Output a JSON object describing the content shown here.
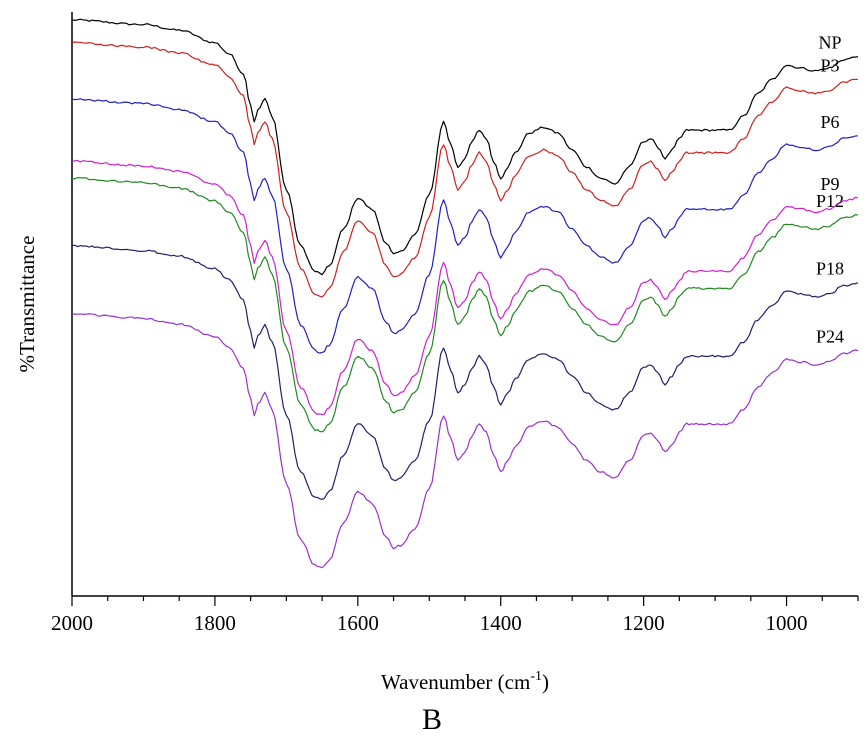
{
  "chart_data": {
    "type": "line",
    "xlabel_main": "Wavenumber (cm",
    "xlabel_sup": "-1",
    "xlabel_end": ")",
    "ylabel": "%Transmittance",
    "panel_label": "B",
    "xlim": [
      2000,
      900
    ],
    "x_reversed": true,
    "x_ticks": [
      2000,
      1800,
      1600,
      1400,
      1200,
      1000
    ],
    "y_ticks": [],
    "grid": false,
    "legend": "inline labels at right end of each curve",
    "series": [
      {
        "name": "NP",
        "color": "#000000",
        "x": [
          2000,
          1900,
          1850,
          1800,
          1780,
          1760,
          1750,
          1745,
          1740,
          1730,
          1720,
          1700,
          1680,
          1660,
          1650,
          1640,
          1620,
          1600,
          1580,
          1560,
          1550,
          1540,
          1520,
          1500,
          1480,
          1470,
          1460,
          1450,
          1440,
          1430,
          1420,
          1410,
          1400,
          1390,
          1380,
          1360,
          1340,
          1320,
          1300,
          1280,
          1260,
          1240,
          1220,
          1200,
          1190,
          1180,
          1170,
          1160,
          1150,
          1140,
          1130,
          1100,
          1080,
          1060,
          1040,
          1020,
          1000,
          980,
          960,
          940,
          920,
          900
        ],
        "y": [
          100,
          99.2,
          98.2,
          96.0,
          94.0,
          90.5,
          85.0,
          82.0,
          84.0,
          86.0,
          83.0,
          70.0,
          60.0,
          55.5,
          55.0,
          56.5,
          63.0,
          68.5,
          66.5,
          60.5,
          58.5,
          59.0,
          62.0,
          69.0,
          82.0,
          78.0,
          74.0,
          75.5,
          78.5,
          80.5,
          79.0,
          75.0,
          72.0,
          74.0,
          76.5,
          80.0,
          81.0,
          80.0,
          77.0,
          74.0,
          72.0,
          71.0,
          74.0,
          78.5,
          79.0,
          77.5,
          75.5,
          77.0,
          79.0,
          80.5,
          80.5,
          80.5,
          80.5,
          83.0,
          87.0,
          89.5,
          92.0,
          91.5,
          91.0,
          91.5,
          93.0,
          93.5
        ]
      },
      {
        "name": "P3",
        "color": "#d02020",
        "x": [
          2000,
          1900,
          1850,
          1800,
          1780,
          1760,
          1750,
          1745,
          1740,
          1730,
          1720,
          1700,
          1680,
          1660,
          1650,
          1640,
          1620,
          1600,
          1580,
          1560,
          1550,
          1540,
          1520,
          1500,
          1480,
          1470,
          1460,
          1450,
          1440,
          1430,
          1420,
          1410,
          1400,
          1390,
          1380,
          1360,
          1340,
          1320,
          1300,
          1280,
          1260,
          1240,
          1220,
          1200,
          1190,
          1180,
          1170,
          1160,
          1150,
          1140,
          1130,
          1100,
          1080,
          1060,
          1040,
          1020,
          1000,
          980,
          960,
          940,
          920,
          900
        ],
        "y": [
          96,
          95.2,
          94.2,
          92.0,
          90.0,
          86.5,
          81.0,
          78.0,
          80.0,
          82.0,
          79.0,
          66.0,
          56.0,
          51.5,
          51.0,
          52.5,
          59.0,
          64.5,
          62.5,
          56.5,
          54.5,
          55.0,
          58.0,
          65.0,
          78.0,
          74.0,
          70.0,
          71.5,
          74.5,
          76.5,
          75.0,
          71.0,
          68.0,
          70.0,
          72.5,
          76.0,
          77.0,
          76.0,
          73.0,
          70.0,
          68.0,
          67.0,
          70.0,
          74.5,
          75.0,
          73.5,
          71.5,
          73.0,
          75.0,
          76.5,
          76.5,
          76.5,
          76.5,
          79.0,
          83.0,
          85.5,
          88.0,
          87.5,
          87.0,
          87.5,
          89.0,
          89.5
        ]
      },
      {
        "name": "P6",
        "color": "#2020c0",
        "x": [
          2000,
          1900,
          1850,
          1800,
          1780,
          1760,
          1750,
          1745,
          1740,
          1730,
          1720,
          1700,
          1680,
          1660,
          1650,
          1640,
          1620,
          1600,
          1580,
          1560,
          1550,
          1540,
          1520,
          1500,
          1480,
          1470,
          1460,
          1450,
          1440,
          1430,
          1420,
          1410,
          1400,
          1390,
          1380,
          1360,
          1340,
          1320,
          1300,
          1280,
          1260,
          1240,
          1220,
          1200,
          1190,
          1180,
          1170,
          1160,
          1150,
          1140,
          1130,
          1100,
          1080,
          1060,
          1040,
          1020,
          1000,
          980,
          960,
          940,
          920,
          900
        ],
        "y": [
          86,
          85.2,
          84.2,
          82.0,
          80.0,
          76.5,
          71.0,
          68.0,
          70.0,
          72.0,
          69.0,
          56.0,
          46.0,
          41.5,
          41.0,
          42.5,
          49.0,
          54.5,
          52.5,
          46.5,
          44.5,
          45.0,
          48.0,
          55.0,
          68.0,
          64.0,
          60.0,
          61.5,
          64.5,
          66.5,
          65.0,
          61.0,
          58.0,
          60.0,
          62.5,
          66.0,
          67.0,
          66.0,
          63.0,
          60.0,
          58.0,
          57.0,
          60.0,
          64.5,
          65.0,
          63.5,
          61.5,
          63.0,
          65.0,
          66.5,
          66.5,
          66.5,
          66.5,
          69.0,
          73.0,
          75.5,
          78.0,
          77.5,
          77.0,
          77.5,
          79.0,
          79.5
        ]
      },
      {
        "name": "P9",
        "color": "#d020d0",
        "x": [
          2000,
          1900,
          1850,
          1800,
          1780,
          1760,
          1750,
          1745,
          1740,
          1730,
          1720,
          1700,
          1680,
          1660,
          1650,
          1640,
          1620,
          1600,
          1580,
          1560,
          1550,
          1540,
          1520,
          1500,
          1480,
          1470,
          1460,
          1450,
          1440,
          1430,
          1420,
          1410,
          1400,
          1390,
          1380,
          1360,
          1340,
          1320,
          1300,
          1280,
          1260,
          1240,
          1220,
          1200,
          1190,
          1180,
          1170,
          1160,
          1150,
          1140,
          1130,
          1100,
          1080,
          1060,
          1040,
          1020,
          1000,
          980,
          960,
          940,
          920,
          900
        ],
        "y": [
          75,
          74.2,
          73.2,
          71.0,
          69.0,
          65.5,
          60.0,
          57.0,
          59.0,
          61.0,
          58.0,
          45.0,
          35.0,
          30.5,
          30.0,
          31.5,
          38.0,
          43.5,
          41.5,
          35.5,
          33.5,
          34.0,
          37.0,
          44.0,
          57.0,
          53.0,
          49.0,
          50.5,
          53.5,
          55.5,
          54.0,
          50.0,
          47.0,
          49.0,
          51.5,
          55.0,
          56.0,
          55.0,
          52.0,
          49.0,
          47.0,
          46.0,
          49.0,
          53.5,
          54.0,
          52.5,
          50.5,
          52.0,
          54.0,
          55.5,
          55.5,
          55.5,
          55.5,
          58.0,
          62.0,
          64.5,
          67.0,
          66.5,
          66.0,
          66.5,
          68.0,
          68.5
        ]
      },
      {
        "name": "P12",
        "color": "#208a20",
        "x": [
          2000,
          1900,
          1850,
          1800,
          1780,
          1760,
          1750,
          1745,
          1740,
          1730,
          1720,
          1700,
          1680,
          1660,
          1650,
          1640,
          1620,
          1600,
          1580,
          1560,
          1550,
          1540,
          1520,
          1500,
          1480,
          1470,
          1460,
          1450,
          1440,
          1430,
          1420,
          1410,
          1400,
          1390,
          1380,
          1360,
          1340,
          1320,
          1300,
          1280,
          1260,
          1240,
          1220,
          1200,
          1190,
          1180,
          1170,
          1160,
          1150,
          1140,
          1130,
          1100,
          1080,
          1060,
          1040,
          1020,
          1000,
          980,
          960,
          940,
          920,
          900
        ],
        "y": [
          72,
          71.2,
          70.2,
          68.0,
          66.0,
          62.5,
          57.0,
          54.0,
          56.0,
          58.0,
          55.0,
          42.0,
          32.0,
          27.5,
          27.0,
          28.5,
          35.0,
          40.5,
          38.5,
          32.5,
          30.5,
          31.0,
          34.0,
          41.0,
          54.0,
          50.0,
          46.0,
          47.5,
          50.5,
          52.5,
          51.0,
          47.0,
          44.0,
          46.0,
          48.5,
          52.0,
          53.0,
          52.0,
          49.0,
          46.0,
          44.0,
          43.0,
          46.0,
          50.5,
          51.0,
          49.5,
          47.5,
          49.0,
          51.0,
          52.5,
          52.5,
          52.5,
          52.5,
          55.0,
          59.0,
          61.5,
          64.0,
          63.5,
          63.0,
          63.5,
          65.0,
          65.5
        ]
      },
      {
        "name": "P18",
        "color": "#20206e",
        "x": [
          2000,
          1900,
          1850,
          1800,
          1780,
          1760,
          1750,
          1745,
          1740,
          1730,
          1720,
          1700,
          1680,
          1660,
          1650,
          1640,
          1620,
          1600,
          1580,
          1560,
          1550,
          1540,
          1520,
          1500,
          1480,
          1470,
          1460,
          1450,
          1440,
          1430,
          1420,
          1410,
          1400,
          1390,
          1380,
          1360,
          1340,
          1320,
          1300,
          1280,
          1260,
          1240,
          1220,
          1200,
          1190,
          1180,
          1170,
          1160,
          1150,
          1140,
          1130,
          1100,
          1080,
          1060,
          1040,
          1020,
          1000,
          980,
          960,
          940,
          920,
          900
        ],
        "y": [
          60,
          59.2,
          58.2,
          56.0,
          54.0,
          50.5,
          45.0,
          42.0,
          44.0,
          46.0,
          43.0,
          30.0,
          20.0,
          15.5,
          15.0,
          16.5,
          23.0,
          28.5,
          26.5,
          20.5,
          18.5,
          19.0,
          22.0,
          29.0,
          42.0,
          38.0,
          34.0,
          35.5,
          38.5,
          40.5,
          39.0,
          35.0,
          32.0,
          34.0,
          36.5,
          40.0,
          41.0,
          40.0,
          37.0,
          34.0,
          32.0,
          31.0,
          34.0,
          38.5,
          39.0,
          37.5,
          35.5,
          37.0,
          39.0,
          40.5,
          40.5,
          40.5,
          40.5,
          43.0,
          47.0,
          49.5,
          52.0,
          51.5,
          51.0,
          51.5,
          53.0,
          53.5
        ]
      },
      {
        "name": "P24",
        "color": "#9a30d0",
        "x": [
          2000,
          1900,
          1850,
          1800,
          1780,
          1760,
          1750,
          1745,
          1740,
          1730,
          1720,
          1700,
          1680,
          1660,
          1650,
          1640,
          1620,
          1600,
          1580,
          1560,
          1550,
          1540,
          1520,
          1500,
          1480,
          1470,
          1460,
          1450,
          1440,
          1430,
          1420,
          1410,
          1400,
          1390,
          1380,
          1360,
          1340,
          1320,
          1300,
          1280,
          1260,
          1240,
          1220,
          1200,
          1190,
          1180,
          1170,
          1160,
          1150,
          1140,
          1130,
          1100,
          1080,
          1060,
          1040,
          1020,
          1000,
          980,
          960,
          940,
          920,
          900
        ],
        "y": [
          48,
          47.2,
          46.2,
          44.0,
          42.0,
          38.5,
          33.0,
          30.0,
          32.0,
          34.0,
          31.0,
          18.0,
          8.0,
          3.5,
          3.0,
          4.5,
          11.0,
          16.5,
          14.5,
          8.5,
          6.5,
          7.0,
          10.0,
          17.0,
          30.0,
          26.0,
          22.0,
          23.5,
          26.5,
          28.5,
          27.0,
          23.0,
          20.0,
          22.0,
          24.5,
          28.0,
          29.0,
          28.0,
          25.0,
          22.0,
          20.0,
          19.0,
          22.0,
          26.5,
          27.0,
          25.5,
          23.5,
          25.0,
          27.0,
          28.5,
          28.5,
          28.5,
          28.5,
          31.0,
          35.0,
          37.5,
          40.0,
          39.5,
          39.0,
          39.5,
          41.0,
          41.5
        ]
      }
    ]
  }
}
